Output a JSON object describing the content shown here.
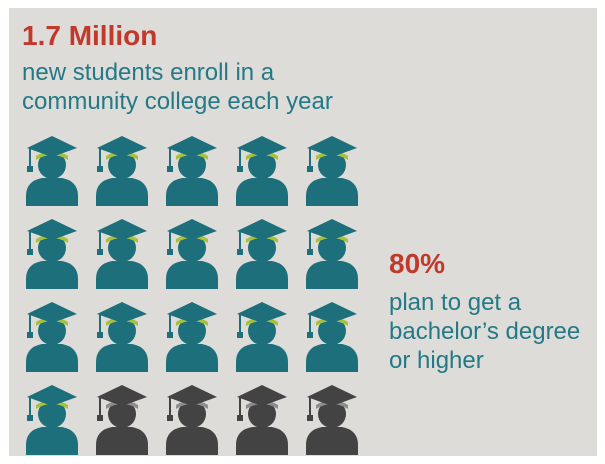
{
  "headline": {
    "figure": "1.7 Million",
    "lines": [
      "new students enroll in a",
      "community college each year"
    ]
  },
  "stat": {
    "percent": "80%",
    "lines": [
      "plan to get a",
      "bachelor’s degree",
      "or higher"
    ]
  },
  "icon_grid": {
    "icon": "graduate-icon",
    "rows": 4,
    "columns": 5,
    "total": 20,
    "highlighted": 16,
    "colors": {
      "highlight_body": "#1e6f7c",
      "highlight_brim": "#a7c23a",
      "muted_body": "#434343",
      "muted_brim": "#8d8d8d"
    }
  }
}
